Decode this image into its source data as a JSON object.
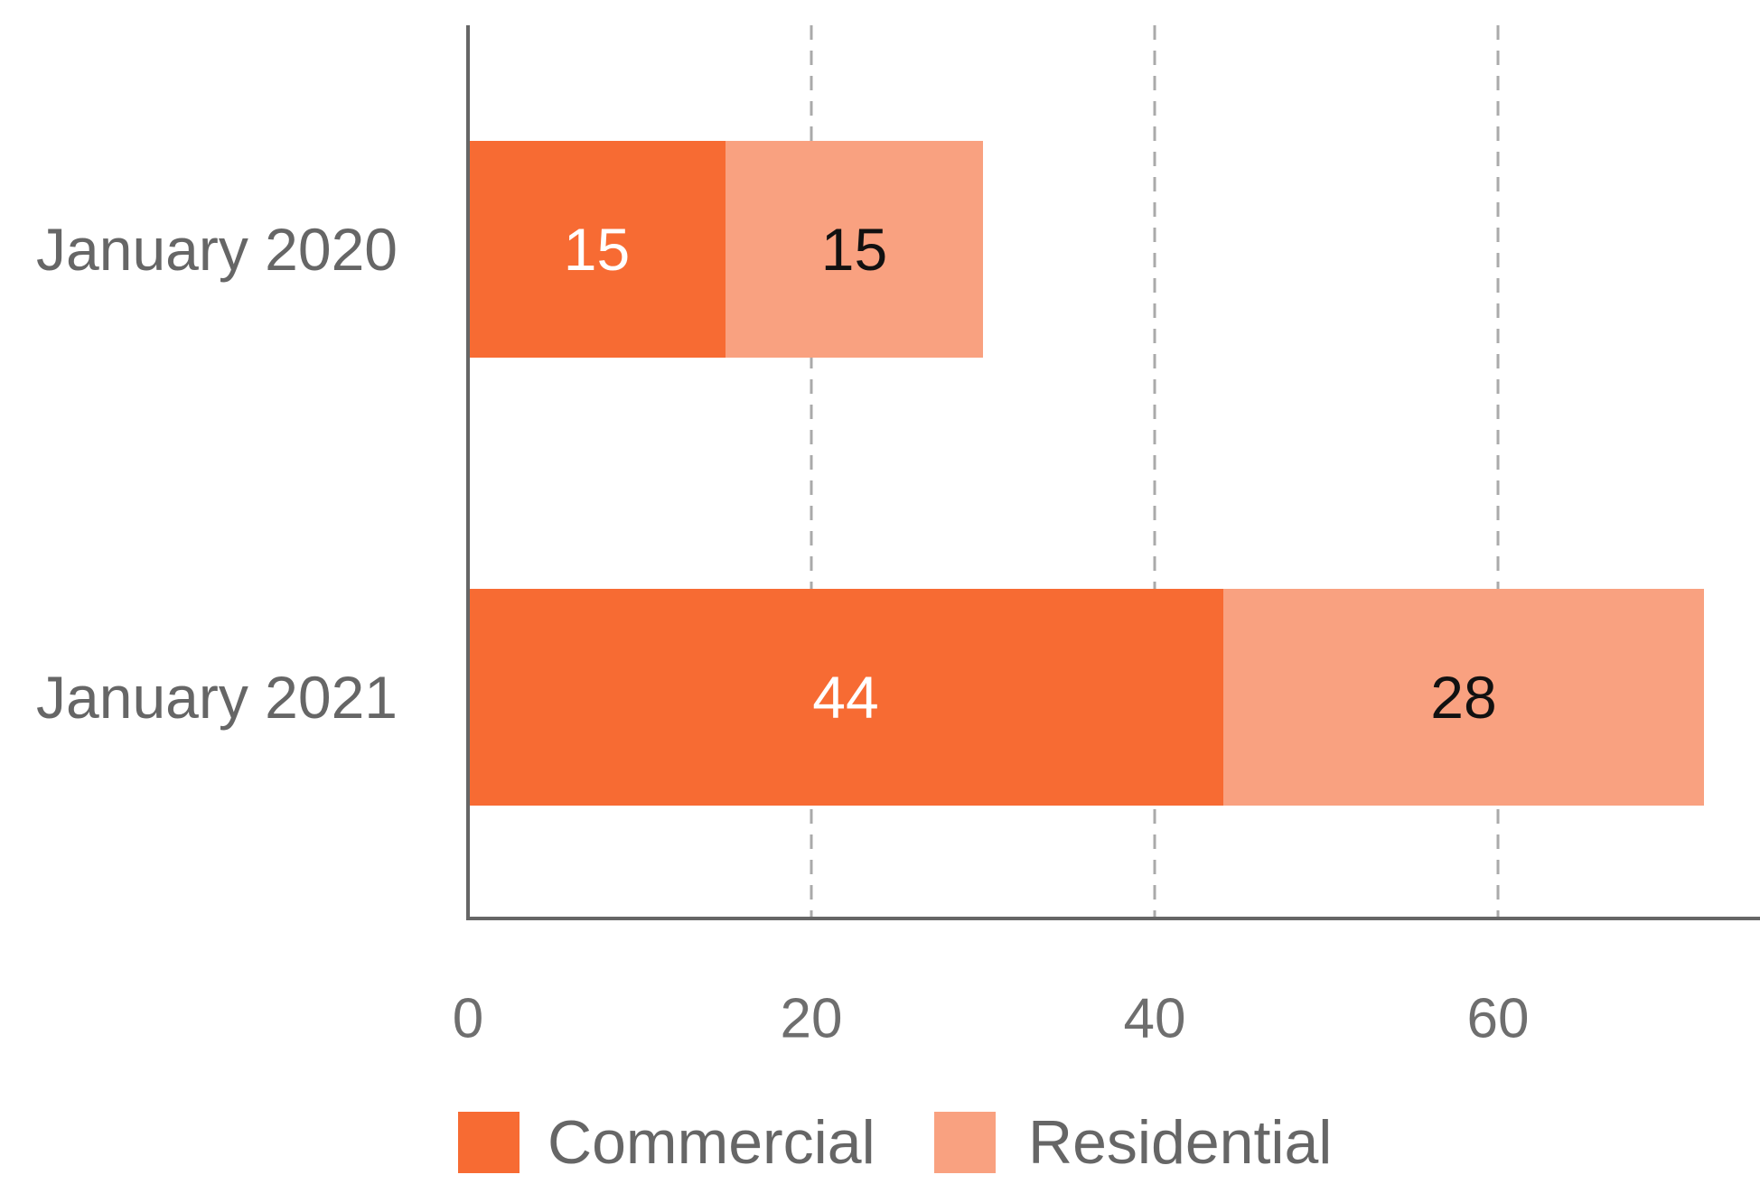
{
  "chart_data": {
    "type": "bar",
    "orientation": "horizontal",
    "stacked": true,
    "categories": [
      "January 2020",
      "January 2021"
    ],
    "series": [
      {
        "name": "Commercial",
        "values": [
          15,
          44
        ],
        "color": "#F76B33",
        "label_color": "#FFFFFF"
      },
      {
        "name": "Residential",
        "values": [
          15,
          28
        ],
        "color": "#F9A180",
        "label_color": "#111111"
      }
    ],
    "xlim": [
      0,
      72
    ],
    "xticks": [
      0,
      20,
      40,
      60
    ],
    "grid": "vertical-dashed",
    "legend_position": "bottom",
    "axis_color": "#666666",
    "grid_color": "#AAAAAA"
  }
}
